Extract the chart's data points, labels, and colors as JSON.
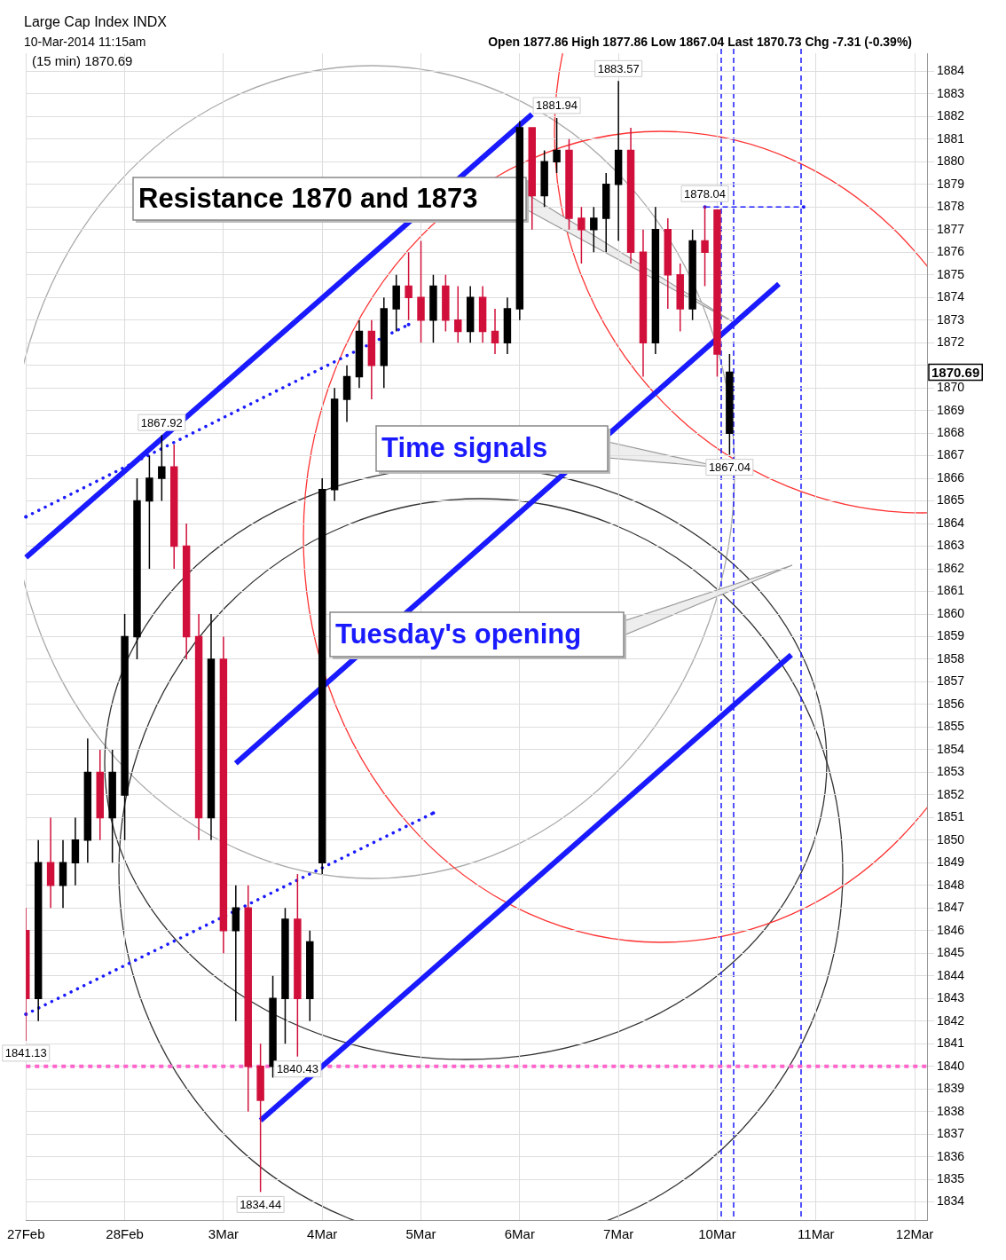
{
  "chart_data": {
    "type": "candlestick",
    "title": "Large Cap Index INDX",
    "subtitle": "10-Mar-2014 11:15am",
    "categories": [
      "27Feb",
      null,
      null,
      null,
      null,
      null,
      null,
      null,
      "28Feb",
      null,
      null,
      null,
      null,
      null,
      null,
      null,
      "3Mar",
      null,
      null,
      null,
      null,
      null,
      null,
      null,
      "4Mar",
      null,
      null,
      null,
      null,
      null,
      null,
      null,
      "5Mar",
      null,
      null,
      null,
      null,
      null,
      null,
      null,
      "6Mar",
      null,
      null,
      null,
      null,
      null,
      null,
      null,
      "7Mar",
      null,
      null,
      null,
      null,
      null,
      null,
      null,
      "10Mar",
      null,
      null,
      null,
      null,
      null,
      null,
      null,
      "11Mar",
      null,
      null,
      null,
      null,
      null,
      null,
      null,
      "12Mar",
      null
    ],
    "ohlc": [
      [
        1846,
        1847,
        1841.13,
        1843
      ],
      [
        1843,
        1850,
        1842,
        1849
      ],
      [
        1849,
        1851,
        1847,
        1848
      ],
      [
        1848,
        1850,
        1847,
        1849
      ],
      [
        1849,
        1851,
        1848,
        1850
      ],
      [
        1850,
        1854.5,
        1849,
        1853
      ],
      [
        1853,
        1854,
        1850,
        1851
      ],
      [
        1851,
        1854,
        1849,
        1853
      ],
      [
        1852,
        1860,
        1850,
        1859
      ],
      [
        1859,
        1866,
        1858,
        1865
      ],
      [
        1865,
        1867,
        1862,
        1866
      ],
      [
        1866,
        1867.92,
        1865,
        1866.5
      ],
      [
        1866.5,
        1867.5,
        1862,
        1863
      ],
      [
        1863,
        1864,
        1858,
        1859
      ],
      [
        1859,
        1860,
        1850,
        1851
      ],
      [
        1851,
        1860,
        1850,
        1858
      ],
      [
        1858,
        1859,
        1845,
        1846
      ],
      [
        1846,
        1848,
        1842,
        1847
      ],
      [
        1847,
        1848,
        1838,
        1840
      ],
      [
        1840,
        1841,
        1834.44,
        1838.5
      ],
      [
        1840,
        1844,
        1839.5,
        1843
      ],
      [
        1843,
        1847,
        1841,
        1846.5
      ],
      [
        1846.5,
        1848.5,
        1840.43,
        1843
      ],
      [
        1843,
        1846,
        1842,
        1845.5
      ],
      [
        1849,
        1866,
        1848.5,
        1865.5
      ],
      [
        1865.5,
        1870,
        1865,
        1869.5
      ],
      [
        1869.5,
        1871,
        1868.5,
        1870.5
      ],
      [
        1870.5,
        1873,
        1870,
        1872.5
      ],
      [
        1872.5,
        1873,
        1869.5,
        1871
      ],
      [
        1871,
        1874,
        1870,
        1873.5
      ],
      [
        1873.5,
        1875,
        1872.5,
        1874.5
      ],
      [
        1874.5,
        1876,
        1873,
        1874
      ],
      [
        1874,
        1876.5,
        1872,
        1873
      ],
      [
        1873,
        1875,
        1872,
        1874.5
      ],
      [
        1874.5,
        1875,
        1872.5,
        1873
      ],
      [
        1873,
        1874.5,
        1872,
        1872.5
      ],
      [
        1872.5,
        1874.5,
        1872,
        1874
      ],
      [
        1874,
        1874.5,
        1872,
        1872.5
      ],
      [
        1872.5,
        1873.5,
        1871.5,
        1872
      ],
      [
        1872,
        1874,
        1871.5,
        1873.5
      ],
      [
        1873.5,
        1881.8,
        1873,
        1881.5
      ],
      [
        1881.5,
        1881.5,
        1877,
        1878.5
      ],
      [
        1878.5,
        1880.5,
        1878,
        1880
      ],
      [
        1880,
        1881.94,
        1879.5,
        1880.5
      ],
      [
        1880.5,
        1881,
        1877,
        1877.5
      ],
      [
        1877.5,
        1878,
        1875.5,
        1877
      ],
      [
        1877,
        1878,
        1876,
        1877.5
      ],
      [
        1877.5,
        1879.5,
        1876,
        1879
      ],
      [
        1879,
        1883.57,
        1876.5,
        1880.5
      ],
      [
        1880.5,
        1881.5,
        1875.5,
        1876
      ],
      [
        1876,
        1877,
        1870.5,
        1872
      ],
      [
        1872,
        1878,
        1871.5,
        1877
      ],
      [
        1877,
        1877.5,
        1873.5,
        1875
      ],
      [
        1875,
        1875.5,
        1872.5,
        1873.5
      ],
      [
        1873.5,
        1877,
        1873,
        1876.5
      ],
      [
        1876.5,
        1878.04,
        1874.5,
        1876
      ],
      [
        1877.86,
        1877.86,
        1870.5,
        1871.5
      ],
      [
        1868,
        1871.5,
        1867.04,
        1870.69
      ],
      null,
      null,
      null,
      null,
      null,
      null,
      null,
      null,
      null,
      null,
      null,
      null,
      null,
      null,
      null,
      null
    ],
    "colors": [
      "#d0103a",
      "#000000",
      "#d0103a",
      "#000000",
      "#000000",
      "#000000",
      "#d0103a",
      "#000000",
      "#000000",
      "#000000",
      "#000000",
      "#000000",
      "#d0103a",
      "#d0103a",
      "#d0103a",
      "#000000",
      "#d0103a",
      "#000000",
      "#d0103a",
      "#d0103a",
      "#000000",
      "#000000",
      "#d0103a",
      "#000000",
      "#000000",
      "#000000",
      "#000000",
      "#000000",
      "#d0103a",
      "#000000",
      "#000000",
      "#d0103a",
      "#d0103a",
      "#000000",
      "#d0103a",
      "#d0103a",
      "#000000",
      "#d0103a",
      "#d0103a",
      "#000000",
      "#000000",
      "#d0103a",
      "#000000",
      "#000000",
      "#d0103a",
      "#d0103a",
      "#000000",
      "#000000",
      "#000000",
      "#d0103a",
      "#d0103a",
      "#000000",
      "#d0103a",
      "#d0103a",
      "#000000",
      "#d0103a",
      "#d0103a",
      "#000000",
      null,
      null,
      null,
      null,
      null,
      null,
      null,
      null,
      null,
      null,
      null,
      null,
      null,
      null,
      null,
      null
    ],
    "series": [
      {
        "type": "line",
        "color": "#1a1aff",
        "line_style": "solid",
        "values": [
          1862.5,
          null,
          null,
          null,
          null,
          null,
          null,
          null,
          null,
          null,
          null,
          null,
          null,
          null,
          null,
          null,
          null,
          null,
          null,
          null,
          null,
          null,
          null,
          null,
          null,
          null,
          null,
          null,
          null,
          null,
          null,
          null,
          null,
          null,
          null,
          null,
          null,
          null,
          null,
          null,
          null,
          1882.1,
          null,
          null,
          null,
          null,
          null,
          null,
          null,
          null,
          null,
          null,
          null,
          null,
          null,
          null,
          null,
          null,
          null,
          null,
          null,
          null,
          null,
          null,
          null,
          null,
          null,
          null,
          null,
          null,
          null,
          null,
          null,
          null
        ]
      },
      {
        "type": "line",
        "color": "#1a1aff",
        "line_style": "solid",
        "values": [
          null,
          null,
          null,
          null,
          null,
          null,
          null,
          null,
          null,
          null,
          null,
          null,
          null,
          null,
          null,
          null,
          null,
          1853.4,
          null,
          null,
          null,
          null,
          null,
          null,
          null,
          null,
          null,
          null,
          null,
          null,
          null,
          null,
          null,
          null,
          null,
          null,
          null,
          null,
          null,
          null,
          null,
          null,
          null,
          null,
          null,
          null,
          null,
          null,
          null,
          null,
          null,
          null,
          null,
          null,
          null,
          null,
          null,
          null,
          null,
          null,
          null,
          1874.6,
          null,
          null,
          null,
          null,
          null,
          null,
          null,
          null,
          null,
          null,
          null,
          null
        ]
      },
      {
        "type": "line",
        "color": "#1a1aff",
        "line_style": "solid",
        "values": [
          null,
          null,
          null,
          null,
          null,
          null,
          null,
          null,
          null,
          null,
          null,
          null,
          null,
          null,
          null,
          null,
          null,
          null,
          null,
          1837.6,
          null,
          null,
          null,
          null,
          null,
          null,
          null,
          null,
          null,
          null,
          null,
          null,
          null,
          null,
          null,
          null,
          null,
          null,
          null,
          null,
          null,
          null,
          null,
          null,
          null,
          null,
          null,
          null,
          null,
          null,
          null,
          null,
          null,
          null,
          null,
          null,
          null,
          null,
          null,
          null,
          null,
          null,
          1858.2,
          null,
          null,
          null,
          null,
          null,
          null,
          null,
          null,
          null,
          null,
          null
        ]
      },
      {
        "type": "line",
        "color": "#1a1aff",
        "line_style": "dotted",
        "values": [
          1864.3,
          null,
          null,
          null,
          null,
          null,
          null,
          null,
          null,
          null,
          null,
          null,
          null,
          null,
          null,
          null,
          null,
          null,
          null,
          null,
          null,
          null,
          null,
          null,
          null,
          null,
          null,
          null,
          null,
          null,
          null,
          1872.8,
          null,
          null,
          null,
          null,
          null,
          null,
          null,
          null,
          null,
          null,
          null,
          null,
          null,
          null,
          null,
          null,
          null,
          null,
          null,
          null,
          null,
          null,
          null,
          null,
          null,
          null,
          null,
          null,
          null,
          null,
          null,
          null,
          null,
          null,
          null,
          null,
          null,
          null,
          null,
          null,
          null,
          null
        ]
      },
      {
        "type": "line",
        "color": "#1a1aff",
        "line_style": "dotted",
        "values": [
          1842.3,
          null,
          null,
          null,
          null,
          null,
          null,
          null,
          null,
          null,
          null,
          null,
          null,
          null,
          null,
          null,
          null,
          null,
          null,
          null,
          null,
          null,
          null,
          null,
          null,
          null,
          null,
          null,
          null,
          null,
          null,
          null,
          null,
          1851.2,
          null,
          null,
          null,
          null,
          null,
          null,
          null,
          null,
          null,
          null,
          null,
          null,
          null,
          null,
          null,
          null,
          null,
          null,
          null,
          null,
          null,
          null,
          null,
          null,
          null,
          null,
          null,
          null,
          null,
          null,
          null,
          null,
          null,
          null,
          null,
          null,
          null,
          null,
          null,
          null
        ]
      },
      {
        "type": "line",
        "color": "#1a1aff",
        "line_style": "dashed",
        "values": [
          null,
          null,
          null,
          null,
          null,
          null,
          null,
          null,
          null,
          null,
          null,
          null,
          null,
          null,
          null,
          null,
          null,
          null,
          null,
          null,
          null,
          null,
          null,
          null,
          null,
          null,
          null,
          null,
          null,
          null,
          null,
          null,
          null,
          null,
          null,
          null,
          null,
          null,
          null,
          null,
          null,
          null,
          null,
          null,
          null,
          null,
          null,
          null,
          null,
          null,
          null,
          null,
          null,
          null,
          null,
          1878,
          null,
          null,
          null,
          null,
          null,
          null,
          null,
          1878,
          null,
          null,
          null,
          null,
          null,
          null,
          null,
          null,
          null,
          null
        ]
      }
    ],
    "ref_lines": [
      {
        "axis": "y",
        "value": 1840,
        "color": "#ff66cc",
        "line_style": "dotted"
      }
    ],
    "ylim": [
      1833.2,
      1884.8
    ],
    "yticks": [
      1834,
      1835,
      1836,
      1837,
      1838,
      1839,
      1840,
      1841,
      1842,
      1843,
      1844,
      1845,
      1846,
      1847,
      1848,
      1849,
      1850,
      1851,
      1852,
      1853,
      1854,
      1855,
      1856,
      1857,
      1858,
      1859,
      1860,
      1861,
      1862,
      1863,
      1864,
      1865,
      1866,
      1867,
      1868,
      1869,
      1870,
      {
        "value": 1871,
        "label": null
      },
      1872,
      1873,
      1874,
      1875,
      1876,
      1877,
      1878,
      1879,
      1880,
      1881,
      1882,
      1883,
      1884
    ],
    "grid": true,
    "annotations": [
      "Open 1877.86 High 1877.86 Low 1867.04 Last 1870.73 Chg -7.31 (-0.39%)",
      "(15 min) 1870.69",
      "Resistance 1870 and 1873",
      "Time signals",
      "Tuesday's opening",
      "1870.69",
      {
        "text": "1867.92",
        "y": 1867.92
      },
      {
        "text": "1841.13",
        "y": 1841.13
      },
      {
        "text": "1834.44",
        "y": 1834.44
      },
      {
        "text": "1840.43",
        "y": 1840.43
      },
      {
        "text": "1883.57",
        "y": 1883.57
      },
      {
        "text": "1881.94",
        "y": 1881.94
      },
      {
        "text": "1878.04",
        "y": 1878.04
      },
      {
        "text": "1867.04",
        "y": 1867.04
      }
    ]
  }
}
